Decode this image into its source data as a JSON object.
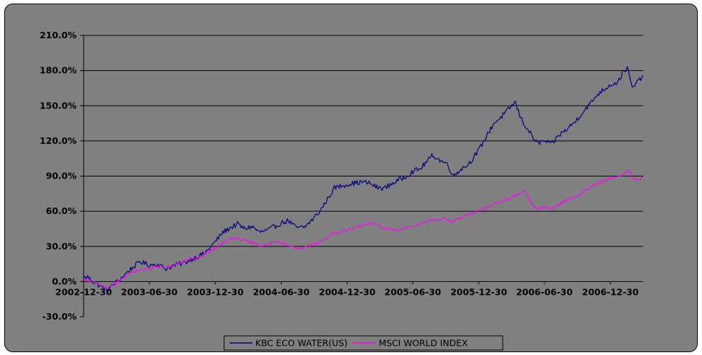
{
  "chart_data": {
    "type": "line",
    "title": "",
    "xlabel": "",
    "ylabel": "",
    "x_ticks": [
      "2002-12-30",
      "2003-06-30",
      "2003-12-30",
      "2004-06-30",
      "2004-12-30",
      "2005-06-30",
      "2005-12-30",
      "2006-06-30",
      "2006-12-30"
    ],
    "y_ticks": [
      "210.0%",
      "180.0%",
      "150.0%",
      "120.0%",
      "90.0%",
      "60.0%",
      "30.0%",
      "0.0%",
      "-30.0%"
    ],
    "ylim": [
      -30,
      210
    ],
    "x_range": [
      "2002-12-30",
      "2007-03-31"
    ],
    "grid": true,
    "legend_position": "bottom",
    "series": [
      {
        "name": "KBC ECO WATER(US)",
        "color": "#000080",
        "points": [
          [
            "2002-12-30",
            3
          ],
          [
            "2003-01-10",
            4
          ],
          [
            "2003-01-25",
            0
          ],
          [
            "2003-02-15",
            -4
          ],
          [
            "2003-03-05",
            -8
          ],
          [
            "2003-03-20",
            -3
          ],
          [
            "2003-04-10",
            2
          ],
          [
            "2003-04-30",
            8
          ],
          [
            "2003-05-15",
            12
          ],
          [
            "2003-06-05",
            17
          ],
          [
            "2003-06-30",
            14
          ],
          [
            "2003-07-20",
            15
          ],
          [
            "2003-08-15",
            11
          ],
          [
            "2003-09-10",
            14
          ],
          [
            "2003-10-05",
            16
          ],
          [
            "2003-11-01",
            20
          ],
          [
            "2003-12-01",
            24
          ],
          [
            "2003-12-30",
            34
          ],
          [
            "2004-01-20",
            42
          ],
          [
            "2004-02-10",
            46
          ],
          [
            "2004-03-01",
            49
          ],
          [
            "2004-03-20",
            45
          ],
          [
            "2004-04-10",
            47
          ],
          [
            "2004-05-01",
            42
          ],
          [
            "2004-05-25",
            44
          ],
          [
            "2004-06-30",
            50
          ],
          [
            "2004-07-20",
            52
          ],
          [
            "2004-08-10",
            46
          ],
          [
            "2004-09-01",
            46
          ],
          [
            "2004-09-25",
            53
          ],
          [
            "2004-10-15",
            60
          ],
          [
            "2004-11-05",
            70
          ],
          [
            "2004-11-25",
            80
          ],
          [
            "2004-12-30",
            83
          ],
          [
            "2005-01-20",
            84
          ],
          [
            "2005-02-10",
            85
          ],
          [
            "2005-03-01",
            84
          ],
          [
            "2005-03-25",
            80
          ],
          [
            "2005-04-15",
            80
          ],
          [
            "2005-05-05",
            84
          ],
          [
            "2005-06-01",
            88
          ],
          [
            "2005-06-30",
            94
          ],
          [
            "2005-07-20",
            96
          ],
          [
            "2005-08-10",
            103
          ],
          [
            "2005-08-25",
            108
          ],
          [
            "2005-09-10",
            104
          ],
          [
            "2005-10-05",
            100
          ],
          [
            "2005-10-20",
            90
          ],
          [
            "2005-11-10",
            96
          ],
          [
            "2005-12-01",
            100
          ],
          [
            "2005-12-30",
            112
          ],
          [
            "2006-01-20",
            124
          ],
          [
            "2006-02-10",
            135
          ],
          [
            "2006-03-01",
            140
          ],
          [
            "2006-03-20",
            146
          ],
          [
            "2006-04-10",
            153
          ],
          [
            "2006-04-25",
            140
          ],
          [
            "2006-05-10",
            132
          ],
          [
            "2006-05-25",
            125
          ],
          [
            "2006-06-10",
            118
          ],
          [
            "2006-06-30",
            120
          ],
          [
            "2006-07-20",
            117
          ],
          [
            "2006-08-10",
            125
          ],
          [
            "2006-09-01",
            130
          ],
          [
            "2006-09-25",
            137
          ],
          [
            "2006-10-15",
            145
          ],
          [
            "2006-11-05",
            152
          ],
          [
            "2006-11-25",
            160
          ],
          [
            "2006-12-30",
            168
          ],
          [
            "2007-01-20",
            170
          ],
          [
            "2007-02-05",
            180
          ],
          [
            "2007-02-15",
            182
          ],
          [
            "2007-03-01",
            165
          ],
          [
            "2007-03-15",
            170
          ],
          [
            "2007-03-31",
            176
          ]
        ]
      },
      {
        "name": "MSCI WORLD INDEX",
        "color": "#FF00FF",
        "points": [
          [
            "2002-12-30",
            2
          ],
          [
            "2003-01-15",
            1
          ],
          [
            "2003-02-10",
            -2
          ],
          [
            "2003-03-05",
            -6
          ],
          [
            "2003-03-25",
            -2
          ],
          [
            "2003-04-15",
            2
          ],
          [
            "2003-05-10",
            7
          ],
          [
            "2003-06-05",
            10
          ],
          [
            "2003-06-30",
            11
          ],
          [
            "2003-07-25",
            13
          ],
          [
            "2003-08-20",
            12
          ],
          [
            "2003-09-15",
            15
          ],
          [
            "2003-10-15",
            18
          ],
          [
            "2003-11-15",
            21
          ],
          [
            "2003-12-30",
            28
          ],
          [
            "2004-01-25",
            34
          ],
          [
            "2004-02-20",
            37
          ],
          [
            "2004-03-20",
            35
          ],
          [
            "2004-04-15",
            33
          ],
          [
            "2004-05-10",
            30
          ],
          [
            "2004-06-05",
            33
          ],
          [
            "2004-06-30",
            33
          ],
          [
            "2004-07-25",
            30
          ],
          [
            "2004-08-20",
            28
          ],
          [
            "2004-09-20",
            31
          ],
          [
            "2004-10-20",
            34
          ],
          [
            "2004-11-20",
            41
          ],
          [
            "2004-12-30",
            44
          ],
          [
            "2005-01-25",
            46
          ],
          [
            "2005-02-20",
            49
          ],
          [
            "2005-03-15",
            50
          ],
          [
            "2005-04-15",
            45
          ],
          [
            "2005-05-15",
            44
          ],
          [
            "2005-06-30",
            47
          ],
          [
            "2005-07-25",
            50
          ],
          [
            "2005-08-20",
            52
          ],
          [
            "2005-09-20",
            54
          ],
          [
            "2005-10-20",
            51
          ],
          [
            "2005-11-20",
            56
          ],
          [
            "2005-12-30",
            60
          ],
          [
            "2006-01-25",
            64
          ],
          [
            "2006-02-20",
            67
          ],
          [
            "2006-03-20",
            70
          ],
          [
            "2006-04-15",
            74
          ],
          [
            "2006-05-05",
            78
          ],
          [
            "2006-05-20",
            70
          ],
          [
            "2006-06-10",
            61
          ],
          [
            "2006-06-30",
            64
          ],
          [
            "2006-07-20",
            62
          ],
          [
            "2006-08-20",
            68
          ],
          [
            "2006-09-20",
            72
          ],
          [
            "2006-10-20",
            77
          ],
          [
            "2006-11-20",
            83
          ],
          [
            "2006-12-30",
            88
          ],
          [
            "2007-01-25",
            91
          ],
          [
            "2007-02-20",
            95
          ],
          [
            "2007-03-05",
            88
          ],
          [
            "2007-03-20",
            86
          ],
          [
            "2007-03-31",
            89
          ]
        ]
      }
    ]
  }
}
